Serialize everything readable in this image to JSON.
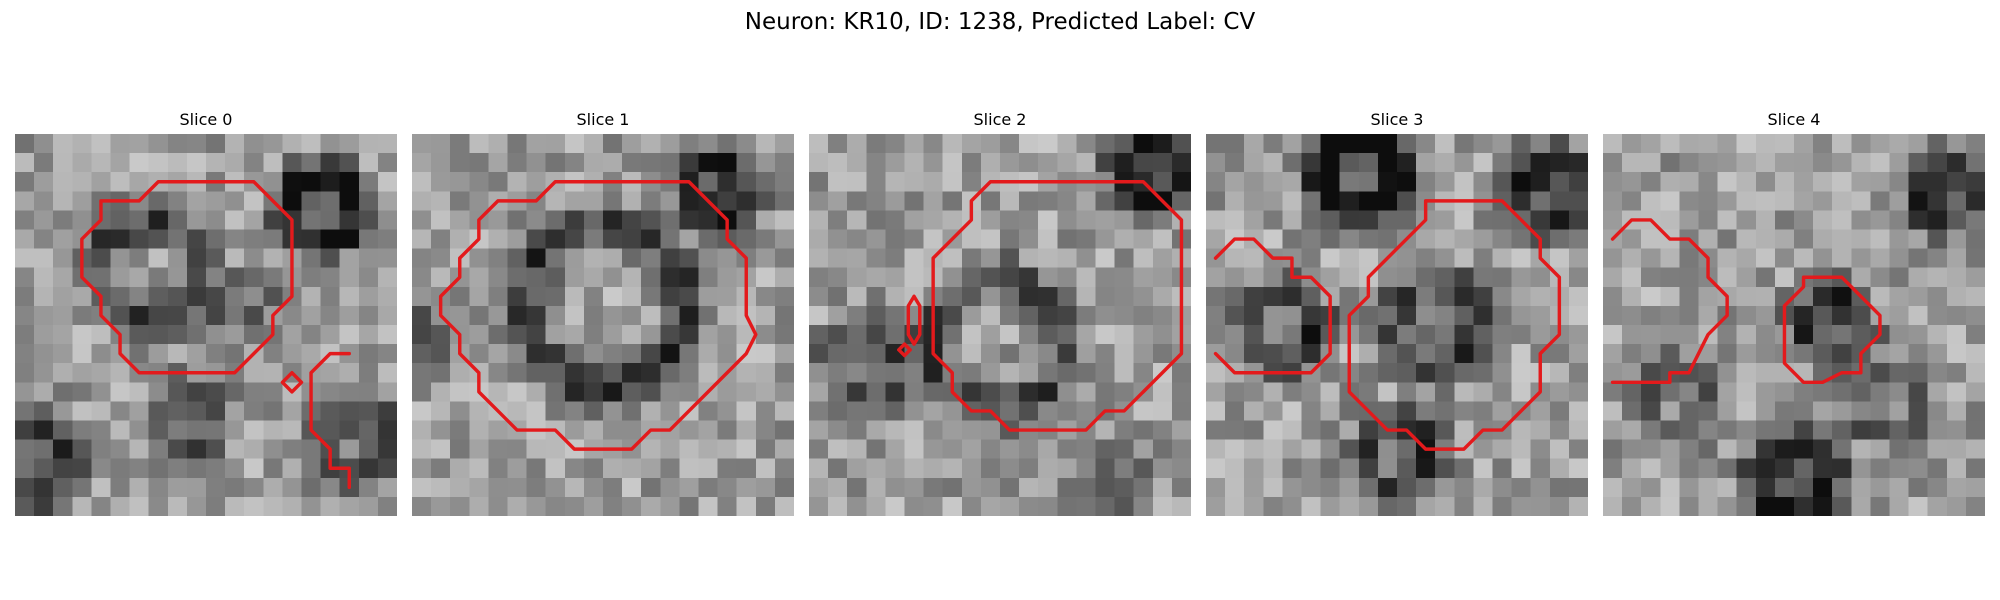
{
  "figure": {
    "title": "Neuron: KR10, ID: 1238, Predicted Label: CV"
  },
  "panels": [
    {
      "title": "Slice 0",
      "contour_color": "#e31a1c",
      "contours": [
        [
          [
            8.5,
            2.5
          ],
          [
            12.5,
            2.5
          ],
          [
            13.5,
            3.5
          ],
          [
            14.5,
            4.5
          ],
          [
            14.5,
            8.5
          ],
          [
            13.5,
            9.5
          ],
          [
            13.5,
            10.5
          ],
          [
            11.5,
            12.5
          ],
          [
            7.5,
            12.5
          ],
          [
            6.5,
            12.5
          ],
          [
            5.5,
            11.5
          ],
          [
            5.5,
            10.5
          ],
          [
            4.5,
            9.5
          ],
          [
            4.5,
            8.5
          ],
          [
            3.5,
            7.5
          ],
          [
            3.5,
            5.5
          ],
          [
            4.5,
            4.5
          ],
          [
            4.5,
            3.5
          ],
          [
            5.5,
            3.5
          ],
          [
            6.5,
            3.5
          ],
          [
            7.5,
            2.5
          ],
          [
            8.5,
            2.5
          ]
        ],
        [
          [
            17.5,
            11.5
          ],
          [
            16.5,
            11.5
          ],
          [
            15.5,
            12.5
          ],
          [
            15.5,
            15.5
          ],
          [
            16.5,
            16.5
          ],
          [
            16.5,
            17.5
          ],
          [
            17.5,
            17.5
          ],
          [
            17.5,
            18.5
          ]
        ],
        [
          [
            14.5,
            12.5
          ],
          [
            15,
            13
          ],
          [
            14.5,
            13.5
          ],
          [
            14,
            13
          ],
          [
            14.5,
            12.5
          ]
        ]
      ]
    },
    {
      "title": "Slice 1",
      "contour_color": "#e31a1c",
      "contours": [
        [
          [
            9.5,
            2.5
          ],
          [
            14.5,
            2.5
          ],
          [
            15.5,
            3.5
          ],
          [
            16.5,
            4.5
          ],
          [
            16.5,
            5.5
          ],
          [
            17.5,
            6.5
          ],
          [
            17.5,
            9.5
          ],
          [
            18,
            10.5
          ],
          [
            17.5,
            11.5
          ],
          [
            16.5,
            12.5
          ],
          [
            15.5,
            13.5
          ],
          [
            14.5,
            14.5
          ],
          [
            13.5,
            15.5
          ],
          [
            12.5,
            15.5
          ],
          [
            11.5,
            16.5
          ],
          [
            9.5,
            16.5
          ],
          [
            8.5,
            16.5
          ],
          [
            7.5,
            15.5
          ],
          [
            5.5,
            15.5
          ],
          [
            4.5,
            14.5
          ],
          [
            3.5,
            13.5
          ],
          [
            3.5,
            12.5
          ],
          [
            2.5,
            11.5
          ],
          [
            2.5,
            10.5
          ],
          [
            1.5,
            9.5
          ],
          [
            1.5,
            8.5
          ],
          [
            2.5,
            7.5
          ],
          [
            2.5,
            6.5
          ],
          [
            3.5,
            5.5
          ],
          [
            3.5,
            4.5
          ],
          [
            4.5,
            3.5
          ],
          [
            5.5,
            3.5
          ],
          [
            6.5,
            3.5
          ],
          [
            7.5,
            2.5
          ],
          [
            9.5,
            2.5
          ]
        ]
      ]
    },
    {
      "title": "Slice 2",
      "contour_color": "#e31a1c",
      "contours": [
        [
          [
            10.5,
            2.5
          ],
          [
            17.5,
            2.5
          ],
          [
            18.5,
            3.5
          ],
          [
            19.5,
            4.5
          ],
          [
            19.5,
            9.5
          ],
          [
            19.5,
            11.5
          ],
          [
            18.5,
            12.5
          ],
          [
            17.5,
            13.5
          ],
          [
            16.5,
            14.5
          ],
          [
            15.5,
            14.5
          ],
          [
            14.5,
            15.5
          ],
          [
            11.5,
            15.5
          ],
          [
            10.5,
            15.5
          ],
          [
            9.5,
            14.5
          ],
          [
            8.5,
            14.5
          ],
          [
            7.5,
            13.5
          ],
          [
            7.5,
            12.5
          ],
          [
            6.5,
            11.5
          ],
          [
            6.5,
            9.5
          ],
          [
            6.5,
            6.5
          ],
          [
            7.5,
            5.5
          ],
          [
            8.5,
            4.5
          ],
          [
            8.5,
            3.5
          ],
          [
            9.5,
            2.5
          ],
          [
            10.5,
            2.5
          ]
        ],
        [
          [
            5.5,
            8.5
          ],
          [
            5.8,
            9
          ],
          [
            5.8,
            10.5
          ],
          [
            5.5,
            11
          ],
          [
            5.2,
            10.5
          ],
          [
            5.2,
            9
          ],
          [
            5.5,
            8.5
          ]
        ],
        [
          [
            5,
            11
          ],
          [
            5.3,
            11.3
          ],
          [
            5,
            11.6
          ],
          [
            4.7,
            11.3
          ],
          [
            5,
            11
          ]
        ]
      ]
    },
    {
      "title": "Slice 3",
      "contour_color": "#e31a1c",
      "contours": [
        [
          [
            0.5,
            6.5
          ],
          [
            1.5,
            5.5
          ],
          [
            2.5,
            5.5
          ],
          [
            3.5,
            6.5
          ],
          [
            4.5,
            6.5
          ],
          [
            4.5,
            7.5
          ],
          [
            5.5,
            7.5
          ],
          [
            6.5,
            8.5
          ],
          [
            6.5,
            11.5
          ],
          [
            5.5,
            12.5
          ],
          [
            4.5,
            12.5
          ],
          [
            2.5,
            12.5
          ],
          [
            1.5,
            12.5
          ],
          [
            0.5,
            11.5
          ]
        ],
        [
          [
            11.5,
            3.5
          ],
          [
            15.5,
            3.5
          ],
          [
            16.5,
            4.5
          ],
          [
            17.5,
            5.5
          ],
          [
            17.5,
            6.5
          ],
          [
            18.5,
            7.5
          ],
          [
            18.5,
            10.5
          ],
          [
            17.5,
            11.5
          ],
          [
            17.5,
            13.5
          ],
          [
            16.5,
            14.5
          ],
          [
            15.5,
            15.5
          ],
          [
            14.5,
            15.5
          ],
          [
            13.5,
            16.5
          ],
          [
            11.5,
            16.5
          ],
          [
            10.5,
            15.5
          ],
          [
            9.5,
            15.5
          ],
          [
            8.5,
            14.5
          ],
          [
            7.5,
            13.5
          ],
          [
            7.5,
            10.5
          ],
          [
            7.5,
            9.5
          ],
          [
            8.5,
            8.5
          ],
          [
            8.5,
            7.5
          ],
          [
            9.5,
            6.5
          ],
          [
            10.5,
            5.5
          ],
          [
            11.5,
            4.5
          ],
          [
            11.5,
            3.5
          ]
        ]
      ]
    },
    {
      "title": "Slice 4",
      "contour_color": "#e31a1c",
      "contours": [
        [
          [
            0.5,
            5.5
          ],
          [
            1.5,
            4.5
          ],
          [
            2.5,
            4.5
          ],
          [
            3.5,
            5.5
          ],
          [
            4.5,
            5.5
          ],
          [
            5.5,
            6.5
          ],
          [
            5.5,
            7.5
          ],
          [
            6.5,
            8.5
          ],
          [
            6.5,
            9.5
          ],
          [
            5.5,
            10.5
          ],
          [
            4.5,
            12.5
          ],
          [
            3.5,
            12.5
          ],
          [
            3.5,
            13
          ],
          [
            2.5,
            13
          ],
          [
            0.5,
            13
          ]
        ],
        [
          [
            10.5,
            7.5
          ],
          [
            12.5,
            7.5
          ],
          [
            13.5,
            8.5
          ],
          [
            14.5,
            9.5
          ],
          [
            14.5,
            10.5
          ],
          [
            13.5,
            11.5
          ],
          [
            13.5,
            12.5
          ],
          [
            12.5,
            12.5
          ],
          [
            11.5,
            13
          ],
          [
            10.5,
            13
          ],
          [
            9.5,
            12
          ],
          [
            9.5,
            11.5
          ],
          [
            9.5,
            9
          ],
          [
            10.5,
            8
          ],
          [
            10.5,
            7.5
          ]
        ]
      ]
    }
  ]
}
